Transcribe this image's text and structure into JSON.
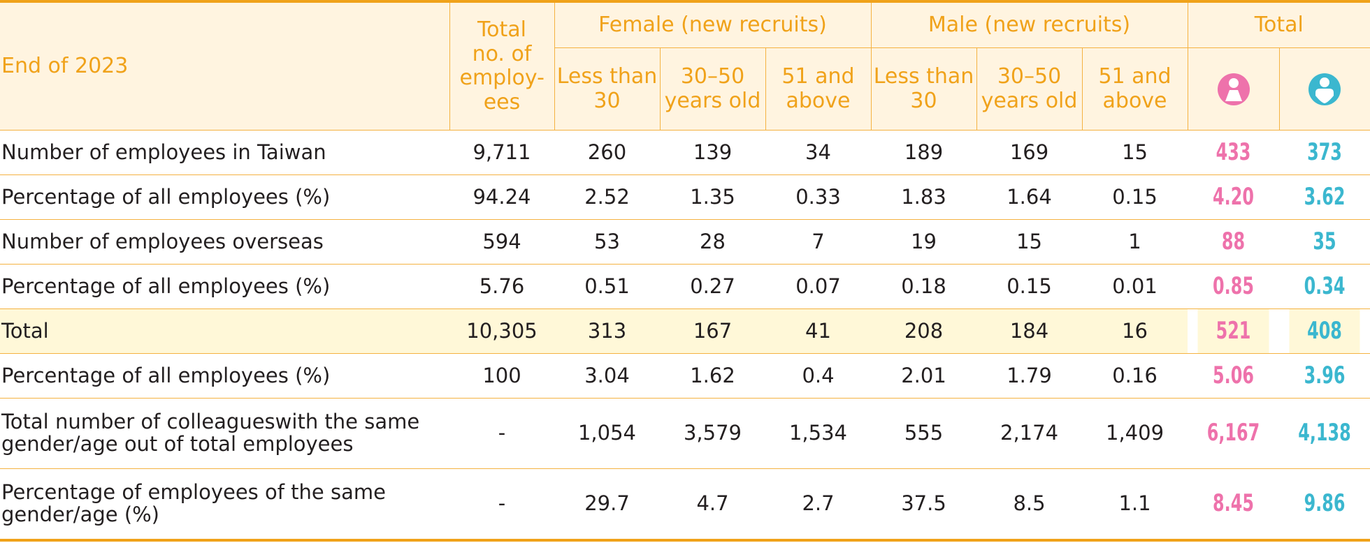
{
  "header": {
    "corner": "End of 2023",
    "total_employees": "Total no. of employ-ees",
    "female_group": "Female (new recruits)",
    "male_group": "Male (new recruits)",
    "total_group": "Total",
    "sub": [
      "Less than 30",
      "30–50 years old",
      "51 and above",
      "Less than 30",
      "30–50 years old",
      "51 and above"
    ],
    "icons": {
      "female": "female-person-icon",
      "male": "male-person-icon"
    },
    "colors": {
      "accent": "#f0a21a",
      "header_bg": "#fff4e0",
      "female": "#ee72ab",
      "male": "#3bb7cf",
      "highlight": "#fff8d8"
    }
  },
  "rows": [
    {
      "label": "Number of employees in Taiwan",
      "total": "9,711",
      "cells": [
        "260",
        "139",
        "34",
        "189",
        "169",
        "15"
      ],
      "female": "433",
      "male": "373"
    },
    {
      "label": "Percentage of all employees (%)",
      "total": "94.24",
      "cells": [
        "2.52",
        "1.35",
        "0.33",
        "1.83",
        "1.64",
        "0.15"
      ],
      "female": "4.20",
      "male": "3.62"
    },
    {
      "label": "Number of employees overseas",
      "total": "594",
      "cells": [
        "53",
        "28",
        "7",
        "19",
        "15",
        "1"
      ],
      "female": "88",
      "male": "35"
    },
    {
      "label": "Percentage of all employees (%)",
      "total": "5.76",
      "cells": [
        "0.51",
        "0.27",
        "0.07",
        "0.18",
        "0.15",
        "0.01"
      ],
      "female": "0.85",
      "male": "0.34"
    },
    {
      "label": "Total",
      "total": "10,305",
      "cells": [
        "313",
        "167",
        "41",
        "208",
        "184",
        "16"
      ],
      "female": "521",
      "male": "408"
    },
    {
      "label": "Percentage of all employees (%)",
      "total": "100",
      "cells": [
        "3.04",
        "1.62",
        "0.4",
        "2.01",
        "1.79",
        "0.16"
      ],
      "female": "5.06",
      "male": "3.96"
    },
    {
      "label": "Total number of colleagueswith the same gender/age out of total employees",
      "total": "-",
      "cells": [
        "1,054",
        "3,579",
        "1,534",
        "555",
        "2,174",
        "1,409"
      ],
      "female": "6,167",
      "male": "4,138"
    },
    {
      "label": "Percentage of employees of the same gender/age (%)",
      "total": "-",
      "cells": [
        "29.7",
        "4.7",
        "2.7",
        "37.5",
        "8.5",
        "1.1"
      ],
      "female": "8.45",
      "male": "9.86"
    }
  ]
}
